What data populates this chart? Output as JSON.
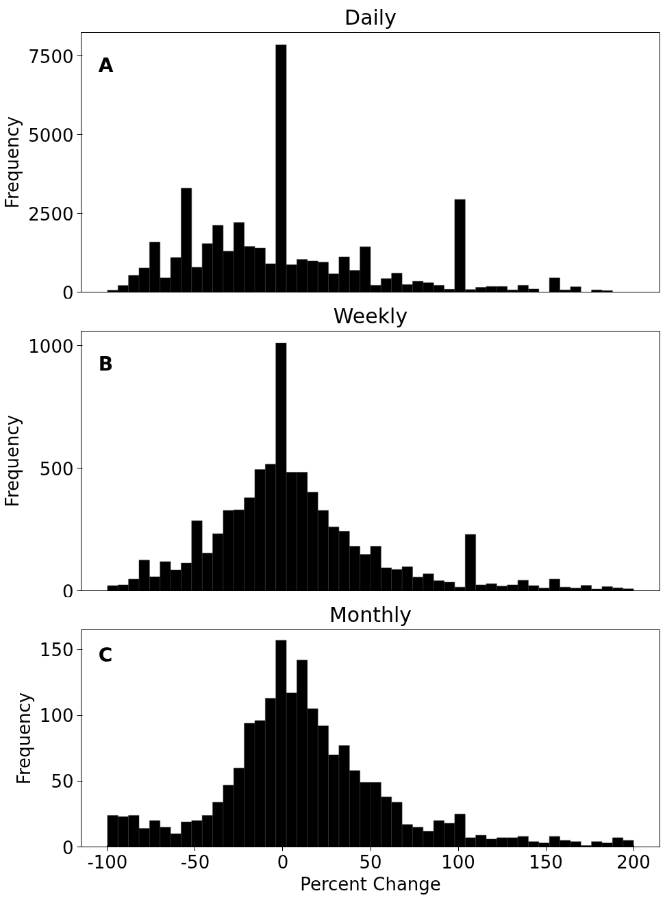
{
  "chart_data": [
    {
      "type": "histogram",
      "title": "Daily",
      "ylabel": "Frequency",
      "annotations": [
        "A"
      ],
      "color": "#000000",
      "tick_labels": "y",
      "grid": false,
      "bins": [
        -100,
        -94,
        -88,
        -82,
        -76,
        -70,
        -64,
        -58,
        -52,
        -46,
        -40,
        -34,
        -28,
        -22,
        -16,
        -10,
        -4,
        2,
        8,
        14,
        20,
        26,
        32,
        38,
        44,
        50,
        56,
        62,
        68,
        74,
        80,
        86,
        92,
        98,
        104,
        110,
        116,
        122,
        128,
        134,
        140,
        146,
        152,
        158,
        164,
        170,
        176,
        182,
        188,
        194,
        200
      ],
      "values": [
        60,
        210,
        530,
        770,
        1590,
        450,
        1100,
        3300,
        790,
        1540,
        2120,
        1300,
        2210,
        1450,
        1400,
        900,
        7850,
        870,
        1040,
        990,
        950,
        580,
        1120,
        690,
        1440,
        220,
        430,
        600,
        240,
        350,
        300,
        220,
        90,
        2940,
        80,
        150,
        180,
        180,
        70,
        220,
        100,
        null,
        450,
        70,
        170,
        null,
        70,
        50,
        null,
        null
      ],
      "xlim": [
        -115,
        215
      ],
      "xticks": [
        -100,
        -50,
        0,
        50,
        100,
        150,
        200
      ],
      "ylim": [
        0,
        8240
      ],
      "yticks": [
        0,
        2500,
        5000,
        7500
      ]
    },
    {
      "type": "histogram",
      "title": "Weekly",
      "ylabel": "Frequency",
      "annotations": [
        "B"
      ],
      "color": "#000000",
      "tick_labels": "y",
      "grid": false,
      "bins": [
        -100,
        -94,
        -88,
        -82,
        -76,
        -70,
        -64,
        -58,
        -52,
        -46,
        -40,
        -34,
        -28,
        -22,
        -16,
        -10,
        -4,
        2,
        8,
        14,
        20,
        26,
        32,
        38,
        44,
        50,
        56,
        62,
        68,
        74,
        80,
        86,
        92,
        98,
        104,
        110,
        116,
        122,
        128,
        134,
        140,
        146,
        152,
        158,
        164,
        170,
        176,
        182,
        188,
        194,
        200
      ],
      "values": [
        21,
        24,
        48,
        125,
        57,
        119,
        85,
        113,
        286,
        154,
        233,
        328,
        330,
        380,
        495,
        517,
        1011,
        484,
        484,
        403,
        328,
        261,
        243,
        182,
        148,
        182,
        94,
        87,
        98,
        56,
        69,
        41,
        35,
        15,
        230,
        24,
        29,
        19,
        24,
        43,
        21,
        11,
        48,
        15,
        11,
        22,
        7,
        17,
        12,
        8
      ],
      "xlim": [
        -115,
        215
      ],
      "xticks": [
        -100,
        -50,
        0,
        50,
        100,
        150,
        200
      ],
      "ylim": [
        0,
        1060
      ],
      "yticks": [
        0,
        500,
        1000
      ]
    },
    {
      "type": "histogram",
      "title": "Monthly",
      "xlabel": "Percent Change",
      "ylabel": "Frequency",
      "annotations": [
        "C"
      ],
      "color": "#000000",
      "grid": false,
      "bins": [
        -100,
        -94,
        -88,
        -82,
        -76,
        -70,
        -64,
        -58,
        -52,
        -46,
        -40,
        -34,
        -28,
        -22,
        -16,
        -10,
        -4,
        2,
        8,
        14,
        20,
        26,
        32,
        38,
        44,
        50,
        56,
        62,
        68,
        74,
        80,
        86,
        92,
        98,
        104,
        110,
        116,
        122,
        128,
        134,
        140,
        146,
        152,
        158,
        164,
        170,
        176,
        182,
        188,
        194,
        200
      ],
      "values": [
        24,
        23,
        24,
        14,
        20,
        15,
        10,
        19,
        20,
        24,
        34,
        47,
        60,
        94,
        96,
        113,
        157,
        117,
        142,
        105,
        92,
        70,
        77,
        58,
        49,
        49,
        38,
        34,
        17,
        15,
        12,
        20,
        18,
        25,
        7,
        9,
        6,
        7,
        7,
        8,
        4,
        3,
        8,
        5,
        4,
        1,
        4,
        3,
        7,
        5
      ],
      "xlim": [
        -115,
        215
      ],
      "xticks": [
        -100,
        -50,
        0,
        50,
        100,
        150,
        200
      ],
      "ylim": [
        0,
        165
      ],
      "yticks": [
        0,
        50,
        100,
        150
      ]
    }
  ]
}
